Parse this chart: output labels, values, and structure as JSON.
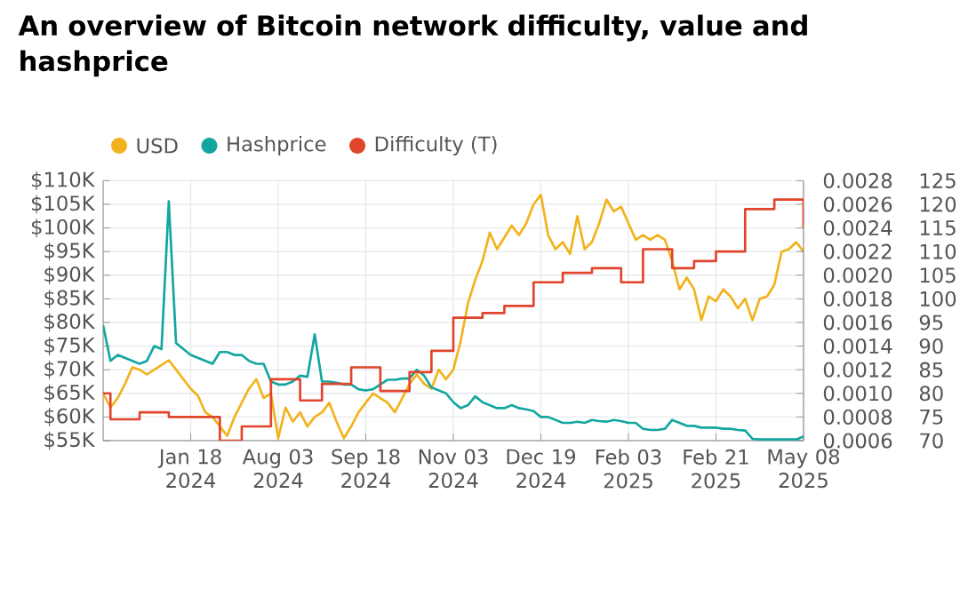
{
  "chart_data": {
    "type": "line",
    "title": "An overview of Bitcoin network difficulty, value and hashprice",
    "categories": [
      null,
      null,
      null,
      null,
      null,
      null,
      null,
      null,
      null,
      null,
      null,
      null,
      "Jan 18 2024",
      null,
      null,
      null,
      null,
      null,
      null,
      null,
      null,
      null,
      null,
      null,
      "Aug 03 2024",
      null,
      null,
      null,
      null,
      null,
      null,
      null,
      null,
      null,
      null,
      null,
      "Sep 18 2024",
      null,
      null,
      null,
      null,
      null,
      null,
      null,
      null,
      null,
      null,
      null,
      "Nov 03 2024",
      null,
      null,
      null,
      null,
      null,
      null,
      null,
      null,
      null,
      null,
      null,
      "Dec 19 2024",
      null,
      null,
      null,
      null,
      null,
      null,
      null,
      null,
      null,
      null,
      null,
      "Feb 03 2025",
      null,
      null,
      null,
      null,
      null,
      null,
      null,
      null,
      null,
      null,
      null,
      "Feb 21 2025",
      null,
      null,
      null,
      null,
      null,
      null,
      null,
      null,
      null,
      null,
      null,
      "May 08 2025"
    ],
    "series": [
      {
        "name": "USD",
        "color": "#f2b21c",
        "values": [
          65000,
          62000,
          64000,
          67000,
          70500,
          70000,
          69000,
          70000,
          71000,
          72000,
          70000,
          68000,
          66000,
          64500,
          61000,
          60000,
          58000,
          56000,
          60000,
          63000,
          66000,
          68000,
          64000,
          65000,
          55500,
          62000,
          59000,
          61000,
          58000,
          60000,
          61000,
          63000,
          59000,
          55500,
          58000,
          61000,
          63000,
          65000,
          64000,
          63000,
          61000,
          64000,
          67000,
          69000,
          67000,
          66000,
          70000,
          68000,
          70000,
          76000,
          84000,
          89000,
          93000,
          99000,
          95500,
          98000,
          100500,
          98500,
          101000,
          105000,
          107000,
          98500,
          95500,
          97000,
          94500,
          102500,
          95500,
          97000,
          101000,
          106000,
          103500,
          104500,
          101000,
          97500,
          98500,
          97500,
          98500,
          97500,
          93000,
          87000,
          89500,
          87000,
          80500,
          85500,
          84500,
          87000,
          85500,
          83000,
          85000,
          80500,
          85000,
          85500,
          88000,
          95000,
          95500,
          97000,
          95000
        ]
      },
      {
        "name": "Hashprice",
        "color": "#13a6a0",
        "axis": "y2",
        "values": [
          0.001575,
          0.001275,
          0.001325,
          0.0013,
          0.001275,
          0.00125,
          0.001275,
          0.0014,
          0.001375,
          0.002625,
          0.001425,
          0.001375,
          0.001325,
          0.0013,
          0.001275,
          0.00125,
          0.00135,
          0.00135,
          0.001325,
          0.001325,
          0.001275,
          0.00125,
          0.00125,
          0.0011,
          0.001075,
          0.001075,
          0.0011,
          0.00115,
          0.00114,
          0.0015,
          0.0011,
          0.0011,
          0.00109,
          0.001075,
          0.001075,
          0.001035,
          0.001025,
          0.001035,
          0.001075,
          0.001115,
          0.001115,
          0.001125,
          0.001125,
          0.0012,
          0.00115,
          0.00105,
          0.001025,
          0.001,
          0.000925,
          0.000875,
          0.0009,
          0.000975,
          0.000925,
          0.0009,
          0.000875,
          0.000875,
          0.0009,
          0.000875,
          0.000865,
          0.00085,
          0.0008,
          0.0008,
          0.000775,
          0.00075,
          0.00075,
          0.00076,
          0.00075,
          0.000775,
          0.000765,
          0.00076,
          0.000775,
          0.000765,
          0.00075,
          0.00075,
          0.0007,
          0.00069,
          0.00069,
          0.0007,
          0.000775,
          0.00075,
          0.000725,
          0.000725,
          0.00071,
          0.00071,
          0.00071,
          0.0007,
          0.0007,
          0.00069,
          0.000685,
          0.000615,
          0.00061,
          0.00061,
          0.00061,
          0.00061,
          0.00061,
          0.00061,
          0.000635
        ]
      },
      {
        "name": "Difficulty (T)",
        "color": "#e0452c",
        "type": "step",
        "axis": "y3",
        "values": [
          80,
          74.5,
          74.5,
          74.5,
          74.5,
          76,
          76,
          76,
          76,
          75,
          75,
          75,
          75,
          75,
          75,
          75,
          70,
          70,
          70,
          73,
          73,
          73,
          73,
          83,
          83,
          83,
          83,
          78.5,
          78.5,
          78.5,
          82,
          82,
          82,
          82,
          85.5,
          85.5,
          85.5,
          85.5,
          80.5,
          80.5,
          80.5,
          80.5,
          84.5,
          84.5,
          84.5,
          89,
          89,
          89,
          96,
          96,
          96,
          96,
          97,
          97,
          97,
          98.5,
          98.5,
          98.5,
          98.5,
          103.5,
          103.5,
          103.5,
          103.5,
          105.5,
          105.5,
          105.5,
          105.5,
          106.5,
          106.5,
          106.5,
          106.5,
          103.5,
          103.5,
          103.5,
          110.5,
          110.5,
          110.5,
          110.5,
          106.5,
          106.5,
          106.5,
          108,
          108,
          108,
          110,
          110,
          110,
          110,
          119,
          119,
          119,
          119,
          121,
          121,
          121,
          121,
          115
        ]
      }
    ],
    "ylim": [
      55000,
      110000
    ],
    "yticks": [
      {
        "value": 55000,
        "label": "$55K"
      },
      {
        "value": 60000,
        "label": "$60K"
      },
      {
        "value": 65000,
        "label": "$65K"
      },
      {
        "value": 70000,
        "label": "$70K"
      },
      {
        "value": 75000,
        "label": "$75K"
      },
      {
        "value": 80000,
        "label": "$80K"
      },
      {
        "value": 85000,
        "label": "$85K"
      },
      {
        "value": 90000,
        "label": "$90K"
      },
      {
        "value": 95000,
        "label": "$95K"
      },
      {
        "value": 100000,
        "label": "$100K"
      },
      {
        "value": 105000,
        "label": "$105K"
      },
      {
        "value": 110000,
        "label": "$110K"
      }
    ],
    "y2lim": [
      0.0006,
      0.0028
    ],
    "y2ticks": [
      {
        "value": 0.0006,
        "label": "0.0006"
      },
      {
        "value": 0.0008,
        "label": "0.0008"
      },
      {
        "value": 0.001,
        "label": "0.0010"
      },
      {
        "value": 0.0012,
        "label": "0.0012"
      },
      {
        "value": 0.0014,
        "label": "0.0014"
      },
      {
        "value": 0.0016,
        "label": "0.0016"
      },
      {
        "value": 0.0018,
        "label": "0.0018"
      },
      {
        "value": 0.002,
        "label": "0.0020"
      },
      {
        "value": 0.0022,
        "label": "0.0022"
      },
      {
        "value": 0.0024,
        "label": "0.0024"
      },
      {
        "value": 0.0026,
        "label": "0.0026"
      },
      {
        "value": 0.0028,
        "label": "0.0028"
      }
    ],
    "y3lim": [
      70,
      125
    ],
    "y3ticks": [
      70,
      75,
      80,
      85,
      90,
      95,
      100,
      105,
      110,
      115,
      120,
      125
    ],
    "grid": true,
    "legend": "top left"
  }
}
